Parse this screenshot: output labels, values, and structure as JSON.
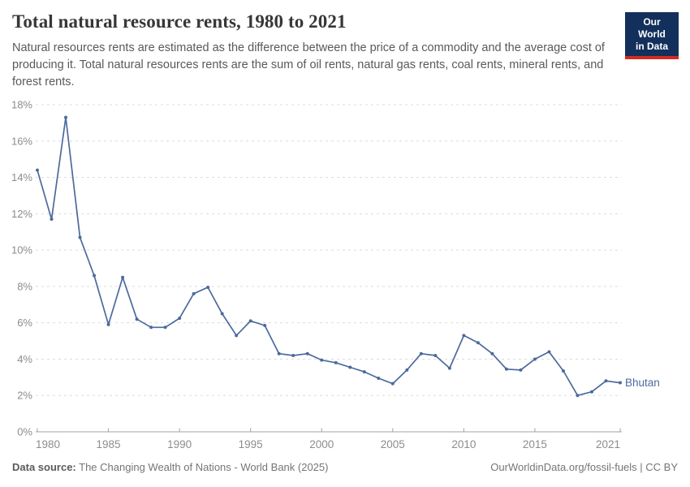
{
  "header": {
    "title": "Total natural resource rents, 1980 to 2021",
    "subtitle": "Natural resources rents are estimated as the difference between the price of a commodity and the average cost of producing it. Total natural resources rents are the sum of oil rents, natural gas rents, coal rents, mineral rents, and forest rents.",
    "logo": {
      "line1": "Our World",
      "line2": "in Data",
      "bg_color": "#12305b",
      "accent_color": "#d12b1f"
    }
  },
  "chart_data": {
    "type": "line",
    "title": "Total natural resource rents, 1980 to 2021",
    "unit": "%",
    "x": [
      1980,
      1981,
      1982,
      1983,
      1984,
      1985,
      1986,
      1987,
      1988,
      1989,
      1990,
      1991,
      1992,
      1993,
      1994,
      1995,
      1996,
      1997,
      1998,
      1999,
      2000,
      2001,
      2002,
      2003,
      2004,
      2005,
      2006,
      2007,
      2008,
      2009,
      2010,
      2011,
      2012,
      2013,
      2014,
      2015,
      2016,
      2017,
      2018,
      2019,
      2020,
      2021
    ],
    "series": [
      {
        "name": "Bhutan",
        "color": "#4c6a9c",
        "values": [
          14.4,
          11.7,
          17.3,
          10.7,
          8.6,
          5.9,
          8.5,
          6.2,
          5.75,
          5.75,
          6.25,
          7.6,
          7.95,
          6.5,
          5.3,
          6.1,
          5.85,
          4.3,
          4.2,
          4.3,
          3.95,
          3.8,
          3.55,
          3.3,
          2.95,
          2.65,
          3.4,
          4.3,
          4.2,
          3.5,
          5.3,
          4.9,
          4.3,
          3.45,
          3.4,
          4.0,
          4.4,
          3.35,
          2.0,
          2.2,
          2.8,
          2.7
        ]
      }
    ],
    "xlabel": "",
    "ylabel": "",
    "ylim": [
      0,
      18
    ],
    "xlim": [
      1980,
      2021
    ],
    "y_ticks": [
      0,
      2,
      4,
      6,
      8,
      10,
      12,
      14,
      16,
      18
    ],
    "y_tick_labels": [
      "0%",
      "2%",
      "4%",
      "6%",
      "8%",
      "10%",
      "12%",
      "14%",
      "16%",
      "18%"
    ],
    "x_ticks": [
      1980,
      1985,
      1990,
      1995,
      2000,
      2005,
      2010,
      2015,
      2021
    ],
    "x_tick_labels": [
      "1980",
      "1985",
      "1990",
      "1995",
      "2000",
      "2005",
      "2010",
      "2015",
      "2021"
    ],
    "grid": "horizontal-dashed",
    "legend": "end-of-line-label",
    "end_label": "Bhutan",
    "colors": {
      "line": "#4c6a9c",
      "gridline": "#dcdcdc",
      "axis": "#a3a3a3",
      "tick_text": "#8c8c8c"
    }
  },
  "footer": {
    "datasource_label": "Data source:",
    "datasource_text": " The Changing Wealth of Nations - World Bank (2025)",
    "credit_text": "OurWorldinData.org/fossil-fuels | CC BY"
  }
}
